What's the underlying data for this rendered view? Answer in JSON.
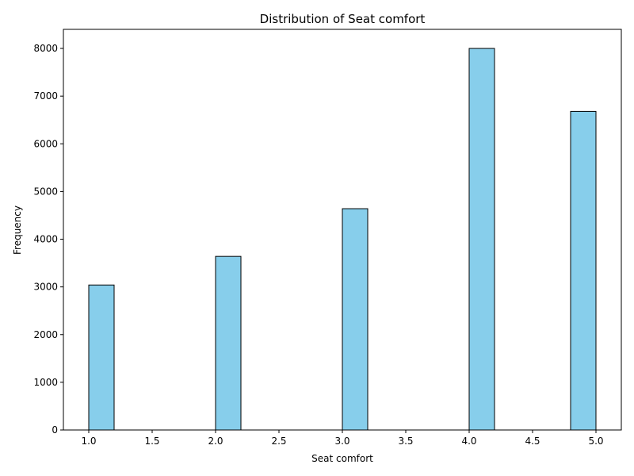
{
  "chart_data": {
    "type": "bar",
    "title": "Distribution of Seat comfort",
    "xlabel": "Seat comfort",
    "ylabel": "Frequency",
    "bins": [
      {
        "x0": 1.0,
        "x1": 1.2,
        "value": 3040
      },
      {
        "x0": 2.0,
        "x1": 2.2,
        "value": 3640
      },
      {
        "x0": 3.0,
        "x1": 3.2,
        "value": 4640
      },
      {
        "x0": 4.0,
        "x1": 4.2,
        "value": 8000
      },
      {
        "x0": 4.8,
        "x1": 5.0,
        "value": 6680
      }
    ],
    "xlim": [
      0.8,
      5.2
    ],
    "ylim": [
      0,
      8400
    ],
    "xticks": [
      "1.0",
      "1.5",
      "2.0",
      "2.5",
      "3.0",
      "3.5",
      "4.0",
      "4.5",
      "5.0"
    ],
    "yticks": [
      "0",
      "1000",
      "2000",
      "3000",
      "4000",
      "5000",
      "6000",
      "7000",
      "8000"
    ],
    "grid": false,
    "colors": {
      "bar_fill": "#87ceeb",
      "bar_edge": "#000000"
    }
  }
}
